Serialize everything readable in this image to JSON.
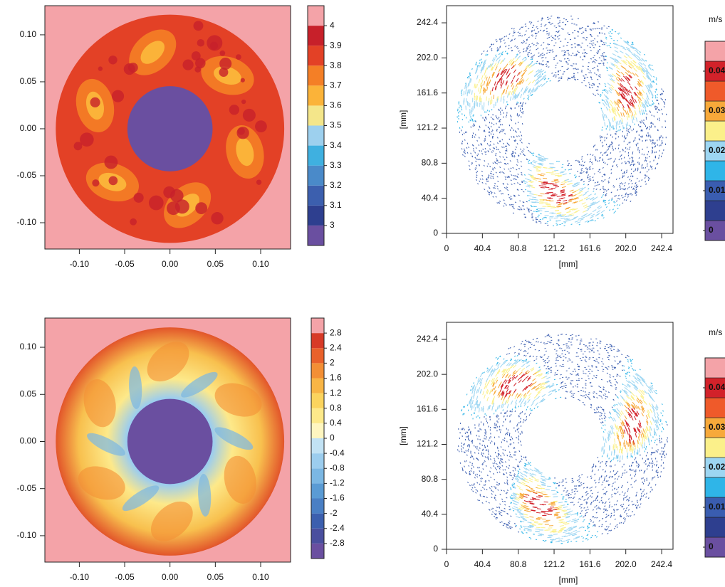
{
  "chart_data": [
    {
      "type": "field",
      "xlim": [
        -0.138,
        0.133
      ],
      "ylim": [
        -0.128,
        0.131
      ],
      "xticks": [
        {
          "value": -0.1,
          "label": "-0.10"
        },
        {
          "value": -0.05,
          "label": "-0.05"
        },
        {
          "value": 0,
          "label": "0.00"
        },
        {
          "value": 0.05,
          "label": "0.05"
        },
        {
          "value": 0.1,
          "label": "0.10"
        }
      ],
      "yticks": [
        {
          "value": -0.1,
          "label": "-0.10"
        },
        {
          "value": -0.05,
          "label": "-0.05"
        },
        {
          "value": 0,
          "label": "0.00"
        },
        {
          "value": 0.05,
          "label": "0.05"
        },
        {
          "value": 0.1,
          "label": "0.10"
        }
      ],
      "colorbar": {
        "levels": [
          3,
          3.1,
          3.2,
          3.3,
          3.4,
          3.5,
          3.6,
          3.7,
          3.8,
          3.9,
          4
        ],
        "colors": [
          "#6a4fa0",
          "#2e3f8f",
          "#3c5fae",
          "#4a8ac9",
          "#3fb0e0",
          "#9dd0ee",
          "#f4e68a",
          "#fbb339",
          "#f47f26",
          "#e34126",
          "#c7202a",
          "#f4a3a8"
        ]
      }
    },
    {
      "type": "vector",
      "xlim": [
        0,
        255.2
      ],
      "ylim": [
        0,
        262.1
      ],
      "xticks": [
        0,
        40.4,
        80.8,
        121.2,
        161.6,
        {
          "value": 202,
          "label": "202.0"
        },
        242.4
      ],
      "yticks": [
        0,
        40.4,
        80.8,
        121.2,
        161.6,
        {
          "value": 202,
          "label": "202.0"
        },
        242.4
      ],
      "xlabel": "[mm]",
      "ylabel": "[mm]",
      "colorbar": {
        "unit": "m/s",
        "levels": [
          0,
          0.01,
          0.02,
          0.03,
          0.04
        ],
        "colors": [
          "#6a4fa0",
          "#2e3f8f",
          "#3a5db0",
          "#2fb5e8",
          "#9dd6f2",
          "#fbf08a",
          "#f7a93a",
          "#ef5a2a",
          "#d2222a",
          "#f4a3a8"
        ]
      }
    },
    {
      "type": "field",
      "xlim": [
        -0.138,
        0.133
      ],
      "ylim": [
        -0.128,
        0.131
      ],
      "xticks": [
        {
          "value": -0.1,
          "label": "-0.10"
        },
        {
          "value": -0.05,
          "label": "-0.05"
        },
        {
          "value": 0,
          "label": "0.00"
        },
        {
          "value": 0.05,
          "label": "0.05"
        },
        {
          "value": 0.1,
          "label": "0.10"
        }
      ],
      "yticks": [
        {
          "value": -0.1,
          "label": "-0.10"
        },
        {
          "value": -0.05,
          "label": "-0.05"
        },
        {
          "value": 0,
          "label": "0.00"
        },
        {
          "value": 0.05,
          "label": "0.05"
        },
        {
          "value": 0.1,
          "label": "0.10"
        }
      ],
      "colorbar": {
        "levels": [
          -2.8,
          -2.4,
          -2,
          -1.6,
          -1.2,
          -0.8,
          -0.4,
          0,
          0.4,
          0.8,
          1.2,
          1.6,
          2,
          2.4,
          2.8
        ],
        "colors": [
          "#6a4fa0",
          "#4a4f9e",
          "#3c5fae",
          "#4a7fc4",
          "#5a9bd4",
          "#7bb7e3",
          "#9ccdee",
          "#c2e2f4",
          "#fff6c0",
          "#fde98a",
          "#fbd45e",
          "#f8b545",
          "#f38f35",
          "#e9612b",
          "#d73a27",
          "#f4a3a8"
        ]
      }
    },
    {
      "type": "vector",
      "xlim": [
        0,
        255.2
      ],
      "ylim": [
        0,
        262.1
      ],
      "xticks": [
        0,
        40.4,
        80.8,
        121.2,
        161.6,
        {
          "value": 202,
          "label": "202.0"
        },
        242.4
      ],
      "yticks": [
        0,
        40.4,
        80.8,
        121.2,
        161.6,
        {
          "value": 202,
          "label": "202.0"
        },
        242.4
      ],
      "xlabel": "[mm]",
      "ylabel": "[mm]",
      "colorbar": {
        "unit": "m/s",
        "levels": [
          0,
          0.01,
          0.02,
          0.03,
          0.04
        ],
        "colors": [
          "#6a4fa0",
          "#2e3f8f",
          "#3a5db0",
          "#2fb5e8",
          "#9dd6f2",
          "#fbf08a",
          "#f7a93a",
          "#ef5a2a",
          "#d2222a",
          "#f4a3a8"
        ]
      }
    }
  ]
}
